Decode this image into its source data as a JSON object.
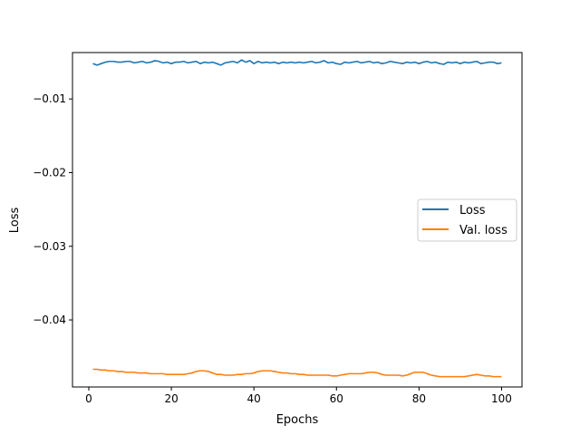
{
  "chart_data": {
    "type": "line",
    "title": "",
    "xlabel": "Epochs",
    "ylabel": "Loss",
    "xlim": [
      -3.95,
      104.95
    ],
    "ylim": [
      -0.0491,
      -0.0037
    ],
    "xticks": [
      0,
      20,
      40,
      60,
      80,
      100
    ],
    "xtick_labels": [
      "0",
      "20",
      "40",
      "60",
      "80",
      "100"
    ],
    "yticks": [
      -0.01,
      -0.02,
      -0.03,
      -0.04
    ],
    "ytick_labels": [
      "−0.01",
      "−0.02",
      "−0.03",
      "−0.04"
    ],
    "grid": false,
    "legend_position": "center-right",
    "x": [
      1,
      2,
      3,
      4,
      5,
      6,
      7,
      8,
      9,
      10,
      11,
      12,
      13,
      14,
      15,
      16,
      17,
      18,
      19,
      20,
      21,
      22,
      23,
      24,
      25,
      26,
      27,
      28,
      29,
      30,
      31,
      32,
      33,
      34,
      35,
      36,
      37,
      38,
      39,
      40,
      41,
      42,
      43,
      44,
      45,
      46,
      47,
      48,
      49,
      50,
      51,
      52,
      53,
      54,
      55,
      56,
      57,
      58,
      59,
      60,
      61,
      62,
      63,
      64,
      65,
      66,
      67,
      68,
      69,
      70,
      71,
      72,
      73,
      74,
      75,
      76,
      77,
      78,
      79,
      80,
      81,
      82,
      83,
      84,
      85,
      86,
      87,
      88,
      89,
      90,
      91,
      92,
      93,
      94,
      95,
      96,
      97,
      98,
      99,
      100
    ],
    "series": [
      {
        "name": "Loss",
        "color": "#1f77b4",
        "values": [
          -0.0052,
          -0.0054,
          -0.0052,
          -0.005,
          -0.0049,
          -0.0049,
          -0.005,
          -0.005,
          -0.0049,
          -0.0049,
          -0.0051,
          -0.005,
          -0.0049,
          -0.0051,
          -0.005,
          -0.0048,
          -0.0049,
          -0.0051,
          -0.005,
          -0.0052,
          -0.005,
          -0.005,
          -0.0049,
          -0.0051,
          -0.005,
          -0.0049,
          -0.0052,
          -0.005,
          -0.0051,
          -0.005,
          -0.0052,
          -0.0054,
          -0.0051,
          -0.005,
          -0.0049,
          -0.0051,
          -0.0047,
          -0.005,
          -0.0048,
          -0.0052,
          -0.0049,
          -0.0051,
          -0.005,
          -0.0051,
          -0.005,
          -0.0052,
          -0.005,
          -0.0051,
          -0.005,
          -0.0051,
          -0.005,
          -0.0051,
          -0.005,
          -0.0049,
          -0.0051,
          -0.005,
          -0.0048,
          -0.0051,
          -0.005,
          -0.0052,
          -0.0053,
          -0.005,
          -0.0051,
          -0.005,
          -0.0049,
          -0.0051,
          -0.005,
          -0.0049,
          -0.0051,
          -0.005,
          -0.0052,
          -0.0051,
          -0.0049,
          -0.005,
          -0.0051,
          -0.0052,
          -0.005,
          -0.0051,
          -0.005,
          -0.0052,
          -0.005,
          -0.0049,
          -0.0051,
          -0.005,
          -0.0052,
          -0.0053,
          -0.005,
          -0.0051,
          -0.005,
          -0.0052,
          -0.005,
          -0.0051,
          -0.005,
          -0.0049,
          -0.0052,
          -0.0051,
          -0.005,
          -0.005,
          -0.0052,
          -0.0051
        ]
      },
      {
        "name": "Val. loss",
        "color": "#ff7f0e",
        "values": [
          -0.0467,
          -0.0467,
          -0.0468,
          -0.0468,
          -0.0469,
          -0.0469,
          -0.047,
          -0.047,
          -0.0471,
          -0.0471,
          -0.0471,
          -0.0472,
          -0.0472,
          -0.0472,
          -0.0473,
          -0.0473,
          -0.0473,
          -0.0473,
          -0.0474,
          -0.0474,
          -0.0474,
          -0.0474,
          -0.0474,
          -0.0473,
          -0.0472,
          -0.047,
          -0.0469,
          -0.0469,
          -0.047,
          -0.0472,
          -0.0474,
          -0.0474,
          -0.0475,
          -0.0475,
          -0.0475,
          -0.0474,
          -0.0474,
          -0.0473,
          -0.0473,
          -0.0472,
          -0.047,
          -0.0469,
          -0.0469,
          -0.0469,
          -0.047,
          -0.0471,
          -0.0472,
          -0.0472,
          -0.0473,
          -0.0473,
          -0.0474,
          -0.0474,
          -0.0475,
          -0.0475,
          -0.0475,
          -0.0475,
          -0.0475,
          -0.0475,
          -0.0476,
          -0.0476,
          -0.0475,
          -0.0474,
          -0.0473,
          -0.0473,
          -0.0473,
          -0.0473,
          -0.0472,
          -0.0471,
          -0.0471,
          -0.0472,
          -0.0474,
          -0.0475,
          -0.0475,
          -0.0475,
          -0.0475,
          -0.0476,
          -0.0475,
          -0.0473,
          -0.0471,
          -0.0471,
          -0.0471,
          -0.0473,
          -0.0475,
          -0.0476,
          -0.0477,
          -0.0477,
          -0.0477,
          -0.0477,
          -0.0477,
          -0.0477,
          -0.0477,
          -0.0476,
          -0.0475,
          -0.0474,
          -0.0475,
          -0.0476,
          -0.0476,
          -0.0477,
          -0.0477,
          -0.0477
        ]
      }
    ]
  }
}
